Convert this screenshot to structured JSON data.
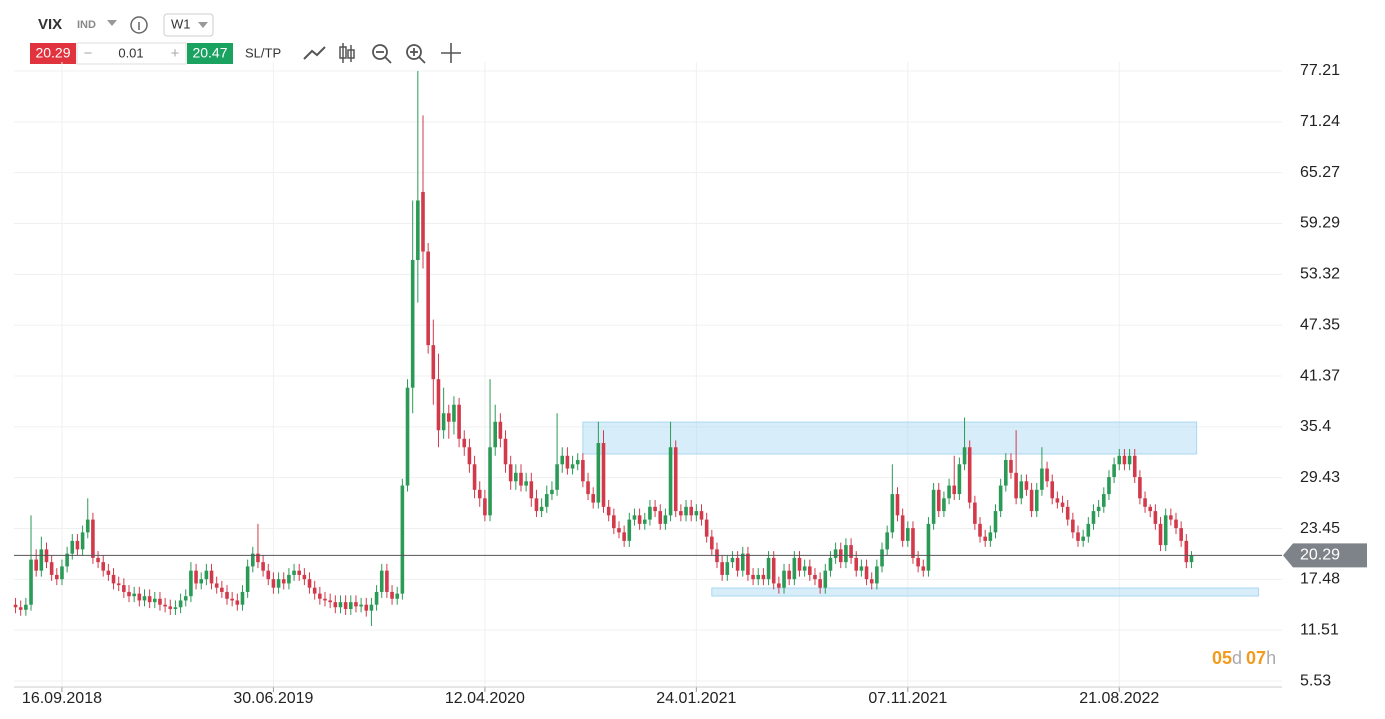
{
  "toolbar": {
    "symbol": "VIX",
    "kind": "IND",
    "timeframe": "W1",
    "bid": "20.29",
    "lot": "0.01",
    "ask": "20.47",
    "sltp": "SL/TP"
  },
  "countdown": [
    "05",
    "d",
    "07",
    "h"
  ],
  "chart_data": {
    "type": "candlestick",
    "up_color": "#2b9a57",
    "down_color": "#d23a4b",
    "grid": true,
    "ylim": [
      4.83,
      78.27
    ],
    "yticks": [
      77.21,
      71.24,
      65.27,
      59.29,
      53.32,
      47.35,
      41.37,
      35.4,
      29.43,
      23.45,
      17.48,
      11.51,
      5.53
    ],
    "xlim": [
      -0.3,
      244
    ],
    "xticks": [
      {
        "value": 9,
        "label": "16.09.2018"
      },
      {
        "value": 50,
        "label": "30.06.2019"
      },
      {
        "value": 91,
        "label": "12.04.2020"
      },
      {
        "value": 132,
        "label": "24.01.2021"
      },
      {
        "value": 173,
        "label": "07.11.2021"
      },
      {
        "value": 214,
        "label": "21.08.2022"
      }
    ],
    "last_price": 20.29,
    "zones": [
      {
        "xlim": [
          110,
          229
        ],
        "ylim": [
          32.21,
          35.96
        ]
      },
      {
        "xlim": [
          135,
          241
        ],
        "ylim": [
          15.52,
          16.46
        ]
      }
    ],
    "ohlc": [
      [
        14.5,
        15.3,
        13.5,
        14.2
      ],
      [
        14.2,
        15,
        13.2,
        13.9
      ],
      [
        13.9,
        15.3,
        13.2,
        14.5
      ],
      [
        14.5,
        25,
        13.8,
        19.8
      ],
      [
        19.8,
        21,
        17.8,
        18.5
      ],
      [
        18.5,
        22.5,
        17.8,
        21
      ],
      [
        21,
        21.8,
        18.8,
        19.5
      ],
      [
        19.5,
        20.3,
        17.3,
        18
      ],
      [
        18,
        18.8,
        16.8,
        17.5
      ],
      [
        17.5,
        19.8,
        16.8,
        19
      ],
      [
        19,
        21.3,
        18.3,
        20.5
      ],
      [
        20.5,
        22.8,
        19.8,
        22
      ],
      [
        22,
        22.8,
        20.3,
        21
      ],
      [
        21,
        23.8,
        20.3,
        23
      ],
      [
        23,
        27,
        22.3,
        24.5
      ],
      [
        24.5,
        25.3,
        19.3,
        20
      ],
      [
        20,
        20.8,
        18.8,
        19.5
      ],
      [
        19.5,
        20.3,
        17.8,
        18.5
      ],
      [
        18.5,
        19.3,
        17.3,
        18
      ],
      [
        18,
        18.8,
        16.3,
        17
      ],
      [
        17,
        17.8,
        16.1,
        16.8
      ],
      [
        16.8,
        17.6,
        15.3,
        16
      ],
      [
        16,
        16.8,
        14.8,
        15.5
      ],
      [
        15.5,
        16.6,
        14.8,
        15.8
      ],
      [
        15.8,
        16.6,
        14.3,
        15
      ],
      [
        15,
        16.3,
        14.3,
        15.5
      ],
      [
        15.5,
        16.3,
        14.1,
        14.8
      ],
      [
        14.8,
        16,
        14.1,
        15.2
      ],
      [
        15.2,
        16,
        13.8,
        14.5
      ],
      [
        14.5,
        15.3,
        13.6,
        14.3
      ],
      [
        14.3,
        15.1,
        13.3,
        14
      ],
      [
        14,
        15,
        13.3,
        14.2
      ],
      [
        14.2,
        15.8,
        13.5,
        15
      ],
      [
        15,
        16.3,
        14.3,
        15.5
      ],
      [
        15.5,
        19.5,
        14.8,
        18.5
      ],
      [
        18.5,
        19.3,
        16.3,
        17
      ],
      [
        17,
        18.3,
        16.3,
        17.5
      ],
      [
        17.5,
        19.3,
        16.8,
        18.5
      ],
      [
        18.5,
        19.3,
        16.3,
        17
      ],
      [
        17,
        17.8,
        15.8,
        16.5
      ],
      [
        16.5,
        17.3,
        15.3,
        16
      ],
      [
        16,
        16.8,
        14.5,
        15.2
      ],
      [
        15.2,
        16,
        14.3,
        15
      ],
      [
        15,
        15.8,
        13.8,
        14.5
      ],
      [
        14.5,
        16.8,
        13.8,
        16
      ],
      [
        16,
        19.8,
        15.3,
        19
      ],
      [
        19,
        21.3,
        18.3,
        20.5
      ],
      [
        20.5,
        24,
        18.8,
        19.5
      ],
      [
        19.5,
        20.3,
        17.8,
        18.5
      ],
      [
        18.5,
        19.3,
        16.8,
        17.5
      ],
      [
        17.5,
        18.3,
        15.8,
        16.5
      ],
      [
        16.5,
        18.3,
        15.8,
        17.5
      ],
      [
        17.5,
        18.3,
        16.3,
        17
      ],
      [
        17,
        18.8,
        16.3,
        18
      ],
      [
        18,
        19.3,
        17.3,
        18.5
      ],
      [
        18.5,
        19.3,
        17.3,
        18
      ],
      [
        18,
        18.8,
        16.8,
        17.5
      ],
      [
        17.5,
        18.3,
        15.8,
        16.5
      ],
      [
        16.5,
        17.3,
        15.1,
        15.8
      ],
      [
        15.8,
        16.6,
        14.5,
        15.2
      ],
      [
        15.2,
        16,
        14.3,
        15
      ],
      [
        15,
        15.8,
        14.1,
        14.8
      ],
      [
        14.8,
        15.6,
        13.5,
        14.2
      ],
      [
        14.2,
        15.6,
        13.5,
        14.8
      ],
      [
        14.8,
        15.6,
        13.3,
        14
      ],
      [
        14,
        15.6,
        13.3,
        14.8
      ],
      [
        14.8,
        15.6,
        13.6,
        14.3
      ],
      [
        14.3,
        15.3,
        13.6,
        14.5
      ],
      [
        14.5,
        15.3,
        13.1,
        13.8
      ],
      [
        13.8,
        15.3,
        12,
        14.5
      ],
      [
        14.5,
        16.8,
        13.8,
        16
      ],
      [
        16,
        19.3,
        15.3,
        18.5
      ],
      [
        18.5,
        19.3,
        15.3,
        16
      ],
      [
        16,
        16.8,
        14.5,
        15.2
      ],
      [
        15.2,
        16.6,
        14.5,
        15.8
      ],
      [
        15.8,
        29.3,
        15.1,
        28.5
      ],
      [
        28.5,
        41,
        27.8,
        40
      ],
      [
        40,
        62,
        37,
        55
      ],
      [
        55,
        77.21,
        50,
        62
      ],
      [
        63,
        72,
        54,
        56
      ],
      [
        56,
        57,
        44,
        45
      ],
      [
        45,
        48,
        38,
        41
      ],
      [
        41,
        44,
        33,
        35
      ],
      [
        35,
        40,
        34,
        37
      ],
      [
        37,
        38,
        34,
        36
      ],
      [
        36,
        39,
        34.5,
        38
      ],
      [
        38,
        38.8,
        33,
        34
      ],
      [
        34,
        35,
        32,
        33
      ],
      [
        33,
        34,
        30,
        31
      ],
      [
        31,
        32,
        27,
        28
      ],
      [
        28,
        29,
        26,
        27
      ],
      [
        27,
        28,
        24.3,
        25
      ],
      [
        25,
        41,
        24.3,
        33
      ],
      [
        33,
        38,
        32,
        36
      ],
      [
        36,
        37,
        33,
        34
      ],
      [
        34,
        35,
        30,
        31
      ],
      [
        31,
        32,
        28,
        29
      ],
      [
        29,
        31,
        28,
        30
      ],
      [
        30,
        31,
        27.8,
        28.5
      ],
      [
        28.5,
        30,
        27.8,
        29
      ],
      [
        29,
        30,
        26,
        27
      ],
      [
        27,
        28,
        24.8,
        25.5
      ],
      [
        25.5,
        27,
        24.8,
        26
      ],
      [
        26,
        28.5,
        25.3,
        27.5
      ],
      [
        27.5,
        29,
        26.8,
        28
      ],
      [
        28,
        37,
        27.3,
        31
      ],
      [
        31,
        33,
        30,
        32
      ],
      [
        32,
        33,
        29.8,
        30.5
      ],
      [
        30.5,
        32,
        29.8,
        31
      ],
      [
        31,
        32.3,
        30.3,
        31.5
      ],
      [
        31.5,
        32.3,
        28.3,
        29
      ],
      [
        29,
        30,
        26.8,
        27.5
      ],
      [
        27.5,
        28.3,
        25.8,
        26.5
      ],
      [
        26.5,
        36,
        25.8,
        33.5
      ],
      [
        33.5,
        35,
        25.3,
        26
      ],
      [
        26,
        26.8,
        24.3,
        25
      ],
      [
        25,
        25.8,
        22.8,
        23.5
      ],
      [
        23.5,
        24.3,
        22.3,
        23
      ],
      [
        23,
        23.8,
        21.3,
        22
      ],
      [
        22,
        25.3,
        21.3,
        24.5
      ],
      [
        24.5,
        25.8,
        23.8,
        25
      ],
      [
        25,
        25.8,
        23.3,
        24
      ],
      [
        24,
        25.3,
        23.3,
        24.5
      ],
      [
        24.5,
        26.8,
        23.8,
        26
      ],
      [
        26,
        26.8,
        24.8,
        25.5
      ],
      [
        25.5,
        26.3,
        23.3,
        24
      ],
      [
        24,
        25.8,
        23.3,
        25
      ],
      [
        25,
        36,
        24.3,
        33
      ],
      [
        33,
        33.8,
        24.8,
        25.5
      ],
      [
        25.5,
        26.3,
        24.3,
        25
      ],
      [
        25,
        26.8,
        24.3,
        26
      ],
      [
        26,
        26.8,
        24.3,
        25
      ],
      [
        25,
        26.3,
        24.3,
        25.5
      ],
      [
        25.5,
        26.3,
        23.8,
        24.5
      ],
      [
        24.5,
        25.3,
        21.8,
        22.5
      ],
      [
        22.5,
        23.3,
        20.3,
        21
      ],
      [
        21,
        21.8,
        18.8,
        19.5
      ],
      [
        19.5,
        20.3,
        17.3,
        18
      ],
      [
        18,
        20.3,
        17.3,
        19.5
      ],
      [
        19.5,
        20.8,
        18.8,
        20
      ],
      [
        20,
        20.8,
        17.8,
        18.5
      ],
      [
        18.5,
        21.3,
        17.8,
        20.5
      ],
      [
        20.5,
        21.3,
        17.3,
        18
      ],
      [
        18,
        18.8,
        16.8,
        17.5
      ],
      [
        17.5,
        18.8,
        16.8,
        18
      ],
      [
        18,
        18.8,
        16.8,
        17.5
      ],
      [
        17.5,
        20.8,
        16.8,
        20
      ],
      [
        20,
        20.8,
        16.3,
        17
      ],
      [
        17,
        17.8,
        15.8,
        16.5
      ],
      [
        16.5,
        19.3,
        15.8,
        18.5
      ],
      [
        18.5,
        19.3,
        16.8,
        17.5
      ],
      [
        17.5,
        20.8,
        16.8,
        20
      ],
      [
        20,
        20.8,
        17.8,
        18.5
      ],
      [
        18.5,
        19.8,
        17.8,
        19
      ],
      [
        19,
        19.8,
        17.3,
        18
      ],
      [
        18,
        18.8,
        16.8,
        17.5
      ],
      [
        17.5,
        18.3,
        15.8,
        16.5
      ],
      [
        16.5,
        19.3,
        15.8,
        18.5
      ],
      [
        18.5,
        20.8,
        17.8,
        20
      ],
      [
        20,
        21.8,
        19.3,
        21
      ],
      [
        21,
        21.8,
        18.8,
        19.5
      ],
      [
        19.5,
        22.3,
        18.8,
        21.5
      ],
      [
        21.5,
        22.3,
        19.3,
        20
      ],
      [
        20,
        20.8,
        17.8,
        18.5
      ],
      [
        18.5,
        19.8,
        17.8,
        19
      ],
      [
        19,
        19.8,
        16.8,
        17.5
      ],
      [
        17.5,
        18.3,
        16.3,
        17
      ],
      [
        17,
        19.8,
        16.3,
        19
      ],
      [
        19,
        21.8,
        18.3,
        21
      ],
      [
        21,
        23.8,
        20.3,
        23
      ],
      [
        23,
        31,
        22.3,
        27.5
      ],
      [
        27.5,
        28.3,
        24.3,
        25
      ],
      [
        25,
        25.8,
        21.3,
        22
      ],
      [
        22,
        24.3,
        21.3,
        23.5
      ],
      [
        23.5,
        24.3,
        19.3,
        20
      ],
      [
        20,
        20.8,
        18.3,
        19
      ],
      [
        19,
        19.8,
        17.8,
        18.5
      ],
      [
        18.5,
        24.8,
        17.8,
        24
      ],
      [
        24,
        28.8,
        23.3,
        28
      ],
      [
        28,
        28.8,
        24.8,
        25.5
      ],
      [
        25.5,
        27.8,
        24.8,
        27
      ],
      [
        27,
        29.3,
        26.3,
        28.5
      ],
      [
        28.5,
        32,
        26.8,
        27.5
      ],
      [
        27.5,
        31.8,
        26.8,
        31
      ],
      [
        31,
        36.5,
        30.3,
        33
      ],
      [
        33,
        33.8,
        25.8,
        26.5
      ],
      [
        26.5,
        27.3,
        23.3,
        24
      ],
      [
        24,
        24.8,
        21.8,
        22.5
      ],
      [
        22.5,
        23.3,
        21.3,
        22
      ],
      [
        22,
        23.8,
        21.3,
        23
      ],
      [
        23,
        26.3,
        22.3,
        25.5
      ],
      [
        25.5,
        29.3,
        24.8,
        28.5
      ],
      [
        28.5,
        32.3,
        27.8,
        31.5
      ],
      [
        31.5,
        32.3,
        29.3,
        30
      ],
      [
        30,
        35,
        26.3,
        27
      ],
      [
        27,
        29.8,
        26.3,
        29
      ],
      [
        29,
        29.8,
        27.3,
        28
      ],
      [
        28,
        28.8,
        24.8,
        25.5
      ],
      [
        25.5,
        28.8,
        24.8,
        28
      ],
      [
        28,
        33,
        27.3,
        30.5
      ],
      [
        30.5,
        31.3,
        28.3,
        29
      ],
      [
        29,
        29.8,
        26.3,
        27
      ],
      [
        27,
        27.8,
        25.8,
        26.5
      ],
      [
        26.5,
        27.3,
        25.3,
        26
      ],
      [
        26,
        26.8,
        23.8,
        24.5
      ],
      [
        24.5,
        25.3,
        22.3,
        23
      ],
      [
        23,
        23.8,
        21.3,
        22
      ],
      [
        22,
        23.3,
        21.3,
        22.5
      ],
      [
        22.5,
        24.8,
        21.8,
        24
      ],
      [
        24,
        26.3,
        23.3,
        25.5
      ],
      [
        25.5,
        26.8,
        24.8,
        26
      ],
      [
        26,
        28.3,
        25.3,
        27.5
      ],
      [
        27.5,
        30.3,
        26.8,
        29.5
      ],
      [
        29.5,
        31.8,
        28.8,
        31
      ],
      [
        31,
        32.8,
        30.3,
        32
      ],
      [
        32,
        32.8,
        30.3,
        31
      ],
      [
        31,
        32.8,
        30.3,
        32
      ],
      [
        32,
        32.8,
        28.8,
        29.5
      ],
      [
        29.5,
        30.3,
        26.3,
        27
      ],
      [
        27,
        27.8,
        25.3,
        26
      ],
      [
        26,
        26.3,
        24.8,
        25.5
      ],
      [
        25.5,
        26.3,
        23.3,
        24
      ],
      [
        24,
        24.8,
        20.8,
        21.5
      ],
      [
        21.5,
        25.8,
        20.8,
        25
      ],
      [
        25,
        25.8,
        23.8,
        24.5
      ],
      [
        24.5,
        25.3,
        22.8,
        23.5
      ],
      [
        23.5,
        24.3,
        21.3,
        22
      ],
      [
        22,
        22.8,
        18.8,
        19.5
      ],
      [
        19.5,
        20.8,
        18.8,
        20.29
      ]
    ]
  }
}
